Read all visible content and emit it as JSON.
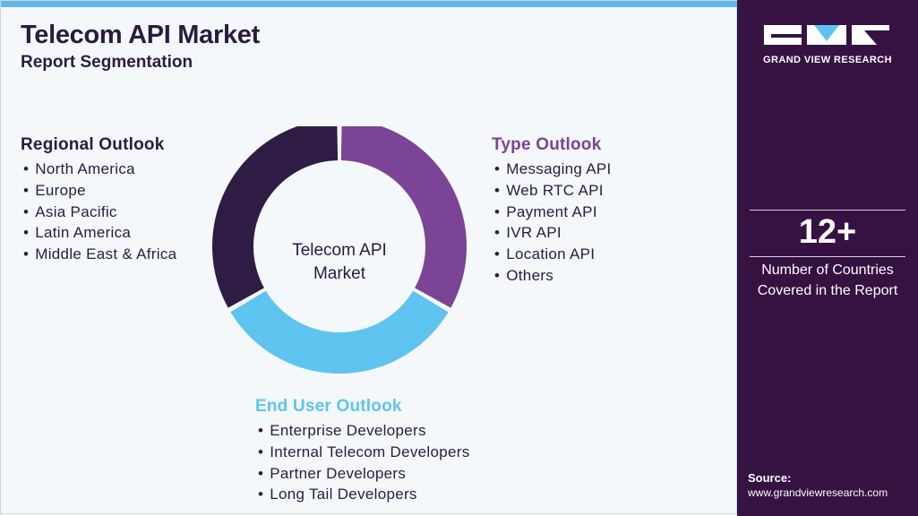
{
  "header": {
    "title": "Telecom API Market",
    "subtitle": "Report Segmentation"
  },
  "center_label": "Telecom API Market",
  "segments": {
    "regional": {
      "title": "Regional Outlook",
      "items": [
        "North America",
        "Europe",
        "Asia Pacific",
        "Latin America",
        "Middle East & Africa"
      ]
    },
    "type": {
      "title": "Type Outlook",
      "items": [
        "Messaging API",
        "Web RTC API",
        "Payment API",
        "IVR API",
        "Location API",
        "Others"
      ]
    },
    "end_user": {
      "title": "End User Outlook",
      "items": [
        "Enterprise Developers",
        "Internal Telecom Developers",
        "Partner Developers",
        "Long Tail Developers"
      ]
    }
  },
  "donut": {
    "slices": [
      {
        "name": "Type Outlook",
        "share": 0.3333,
        "color": "#7b4497"
      },
      {
        "name": "End User Outlook",
        "share": 0.3333,
        "color": "#5ec4ef"
      },
      {
        "name": "Regional Outlook",
        "share": 0.3334,
        "color": "#2f1c45"
      }
    ]
  },
  "sidebar": {
    "logo_text": "GRAND VIEW RESEARCH",
    "stat_number": "12+",
    "stat_label": "Number of Countries Covered in the Report",
    "source_label": "Source:",
    "source_url": "www.grandviewresearch.com"
  },
  "colors": {
    "accent_bar": "#5fb7ea",
    "sidebar_bg": "#351242",
    "title": "#2b1b40"
  }
}
